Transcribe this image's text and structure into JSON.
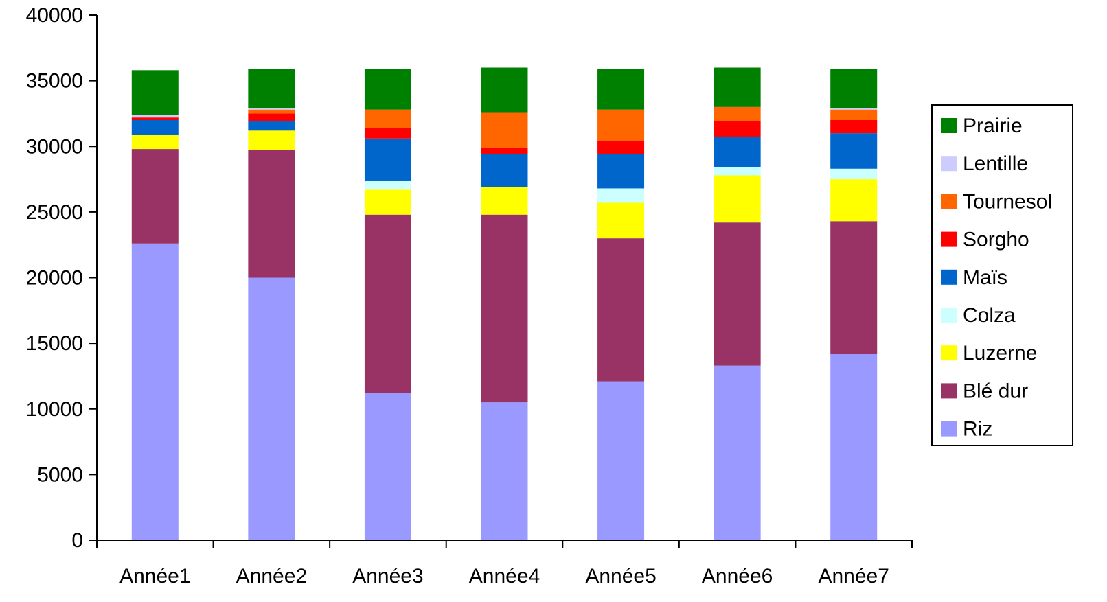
{
  "chart_data": {
    "type": "bar",
    "stacked": true,
    "title": "",
    "xlabel": "",
    "ylabel": "",
    "ylim": [
      0,
      40000
    ],
    "yticks": [
      0,
      5000,
      10000,
      15000,
      20000,
      25000,
      30000,
      35000,
      40000
    ],
    "grid": false,
    "legend_position": "right",
    "categories": [
      "Année1",
      "Année2",
      "Année3",
      "Année4",
      "Année5",
      "Année6",
      "Année7"
    ],
    "series": [
      {
        "name": "Riz",
        "color": "#9999FF",
        "values": [
          22600,
          20000,
          11200,
          10500,
          12100,
          13300,
          14200
        ]
      },
      {
        "name": "Blé dur",
        "color": "#993366",
        "values": [
          7200,
          9700,
          13600,
          14300,
          10900,
          10900,
          10100
        ]
      },
      {
        "name": "Luzerne",
        "color": "#FFFF00",
        "values": [
          1100,
          1500,
          1900,
          2100,
          2700,
          3600,
          3200
        ]
      },
      {
        "name": "Colza",
        "color": "#CCFFFF",
        "values": [
          0,
          0,
          700,
          0,
          1100,
          600,
          800
        ]
      },
      {
        "name": "Maïs",
        "color": "#0066CC",
        "values": [
          1100,
          700,
          3200,
          2500,
          2600,
          2300,
          2700
        ]
      },
      {
        "name": "Sorgho",
        "color": "#FF0000",
        "values": [
          200,
          600,
          800,
          500,
          1000,
          1200,
          1000
        ]
      },
      {
        "name": "Tournesol",
        "color": "#FF6600",
        "values": [
          0,
          300,
          1400,
          2700,
          2400,
          1100,
          800
        ]
      },
      {
        "name": "Lentille",
        "color": "#CCCCFF",
        "values": [
          200,
          100,
          0,
          0,
          0,
          0,
          100
        ]
      },
      {
        "name": "Prairie",
        "color": "#008000",
        "values": [
          3400,
          3000,
          3100,
          3400,
          3100,
          3000,
          3000
        ]
      }
    ]
  }
}
